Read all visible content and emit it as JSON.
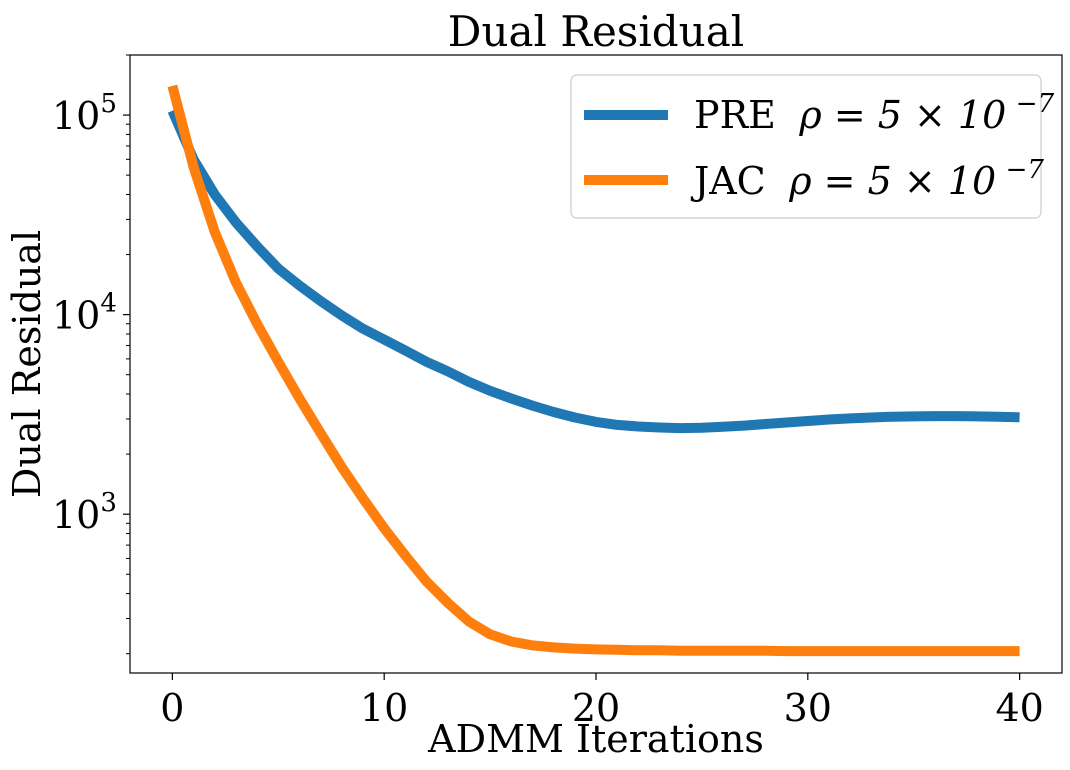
{
  "chart_data": {
    "type": "line",
    "title": "Dual Residual",
    "xlabel": "ADMM Iterations",
    "ylabel": "Dual Residual",
    "yscale": "log",
    "xlim": [
      -2,
      42
    ],
    "ylim": [
      160,
      200000
    ],
    "x_ticks": [
      0,
      10,
      20,
      30,
      40
    ],
    "y_ticks": [
      {
        "value": 1000,
        "base": "10",
        "exp": "3"
      },
      {
        "value": 10000,
        "base": "10",
        "exp": "4"
      },
      {
        "value": 100000,
        "base": "10",
        "exp": "5"
      }
    ],
    "grid": false,
    "legend_position": "top-right",
    "series": [
      {
        "name": "PRE",
        "legend_math": "ρ = 5 × 10",
        "legend_exp": "−7",
        "color": "#1f77b4",
        "x": [
          0,
          1,
          2,
          3,
          4,
          5,
          6,
          7,
          8,
          9,
          10,
          11,
          12,
          13,
          14,
          15,
          16,
          17,
          18,
          19,
          20,
          21,
          22,
          23,
          24,
          25,
          26,
          27,
          28,
          29,
          30,
          31,
          32,
          33,
          34,
          35,
          36,
          37,
          38,
          39,
          40
        ],
        "y": [
          105000,
          60000,
          40000,
          29000,
          22000,
          17000,
          14000,
          11700,
          9900,
          8500,
          7500,
          6600,
          5800,
          5200,
          4600,
          4150,
          3800,
          3500,
          3250,
          3050,
          2900,
          2800,
          2750,
          2720,
          2700,
          2710,
          2740,
          2780,
          2830,
          2880,
          2930,
          2980,
          3020,
          3050,
          3080,
          3090,
          3100,
          3100,
          3090,
          3080,
          3060
        ]
      },
      {
        "name": "JAC",
        "legend_math": "ρ = 5 × 10",
        "legend_exp": "−7",
        "color": "#ff7f0e",
        "x": [
          0,
          1,
          2,
          3,
          4,
          5,
          6,
          7,
          8,
          9,
          10,
          11,
          12,
          13,
          14,
          15,
          16,
          17,
          18,
          19,
          20,
          21,
          22,
          23,
          24,
          25,
          26,
          27,
          28,
          29,
          30,
          31,
          32,
          33,
          34,
          35,
          36,
          37,
          38,
          39,
          40
        ],
        "y": [
          140000,
          55000,
          26000,
          14500,
          9000,
          5800,
          3800,
          2550,
          1720,
          1200,
          850,
          620,
          460,
          360,
          290,
          250,
          230,
          220,
          215,
          212,
          210,
          209,
          208,
          208,
          207,
          207,
          207,
          207,
          207,
          206,
          206,
          206,
          206,
          206,
          206,
          206,
          206,
          206,
          206,
          206,
          206
        ]
      }
    ]
  }
}
